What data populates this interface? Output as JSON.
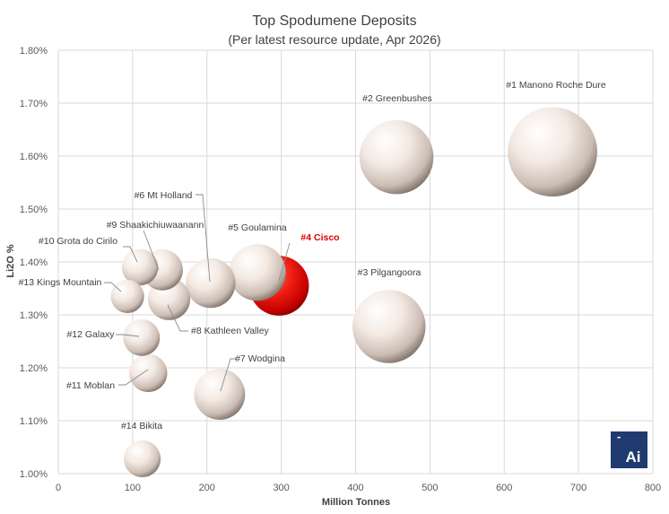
{
  "chart_data": {
    "type": "bubble",
    "title": "Top Spodumene Deposits",
    "subtitle": "(Per latest resource update, Apr 2026)",
    "xlabel": "Million Tonnes",
    "ylabel": "Li2O %",
    "xlim": [
      0,
      800
    ],
    "ylim": [
      1.0,
      1.8
    ],
    "x_ticks": [
      0,
      100,
      200,
      300,
      400,
      500,
      600,
      700,
      800
    ],
    "y_ticks": [
      1.0,
      1.1,
      1.2,
      1.3,
      1.4,
      1.5,
      1.6,
      1.7,
      1.8
    ],
    "y_tick_labels": [
      "1.00%",
      "1.10%",
      "1.20%",
      "1.30%",
      "1.40%",
      "1.50%",
      "1.60%",
      "1.70%",
      "1.80%"
    ],
    "grid": true,
    "colors": {
      "default": "#efe3da",
      "highlight": "#e8100f"
    },
    "points": [
      {
        "label": "#1 Manono Roche Dure",
        "x": 665,
        "y": 1.608,
        "size": 665,
        "highlight": false
      },
      {
        "label": "#2 Greenbushes",
        "x": 455,
        "y": 1.598,
        "size": 455,
        "highlight": false
      },
      {
        "label": "#3 Pilgangoora",
        "x": 445,
        "y": 1.278,
        "size": 445,
        "highlight": false
      },
      {
        "label": "#4 Cisco",
        "x": 297,
        "y": 1.355,
        "size": 297,
        "highlight": true
      },
      {
        "label": "#5 Goulamina",
        "x": 268,
        "y": 1.38,
        "size": 268,
        "highlight": false
      },
      {
        "label": "#6 Mt Holland",
        "x": 205,
        "y": 1.36,
        "size": 205,
        "highlight": false
      },
      {
        "label": "#7 Wodgina",
        "x": 217,
        "y": 1.15,
        "size": 217,
        "highlight": false
      },
      {
        "label": "#8 Kathleen Valley",
        "x": 149,
        "y": 1.33,
        "size": 149,
        "highlight": false
      },
      {
        "label": "#9 Shaakichiuwaanann",
        "x": 140,
        "y": 1.385,
        "size": 140,
        "highlight": false
      },
      {
        "label": "#10 Grota do Cirilo",
        "x": 110,
        "y": 1.39,
        "size": 110,
        "highlight": false
      },
      {
        "label": "#11 Moblan",
        "x": 121,
        "y": 1.19,
        "size": 121,
        "highlight": false
      },
      {
        "label": "#12 Galaxy",
        "x": 112,
        "y": 1.257,
        "size": 112,
        "highlight": false
      },
      {
        "label": "#13 Kings Mountain",
        "x": 93,
        "y": 1.335,
        "size": 93,
        "highlight": false
      },
      {
        "label": "#14 Bikita",
        "x": 113,
        "y": 1.028,
        "size": 113,
        "highlight": false
      }
    ]
  },
  "logo": {
    "text": "Ai",
    "accent": "-"
  }
}
